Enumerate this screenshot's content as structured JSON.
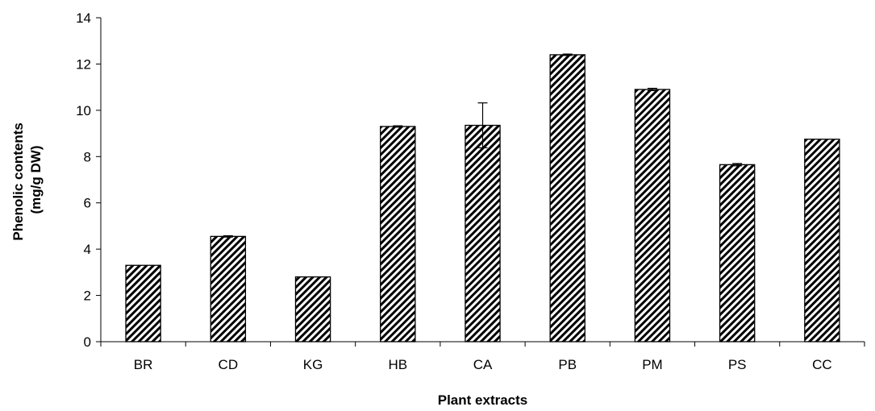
{
  "chart_data": {
    "type": "bar",
    "title": "",
    "xlabel": "Plant extracts",
    "ylabel_lines": [
      "Phenolic contents",
      "(mg/g DW)"
    ],
    "categories": [
      "BR",
      "CD",
      "KG",
      "HB",
      "CA",
      "PB",
      "PM",
      "PS",
      "CC"
    ],
    "values": [
      3.3,
      4.55,
      2.8,
      9.3,
      9.35,
      12.4,
      10.9,
      7.65,
      8.75
    ],
    "errors": [
      0,
      0.03,
      0,
      0.03,
      0.97,
      0.03,
      0.05,
      0.05,
      0
    ],
    "ylim": [
      0,
      14
    ],
    "yticks": [
      0,
      2,
      4,
      6,
      8,
      10,
      12,
      14
    ],
    "grid": false,
    "bar_pattern": "diagonal-hatch",
    "bar_color": "#000000"
  }
}
